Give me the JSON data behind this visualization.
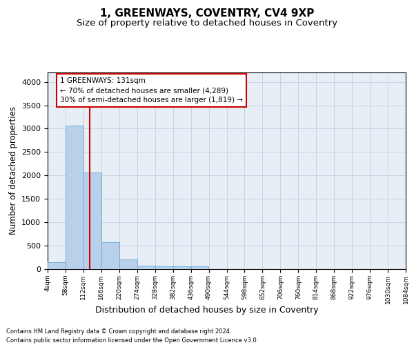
{
  "title": "1, GREENWAYS, COVENTRY, CV4 9XP",
  "subtitle": "Size of property relative to detached houses in Coventry",
  "xlabel": "Distribution of detached houses by size in Coventry",
  "ylabel": "Number of detached properties",
  "footer_line1": "Contains HM Land Registry data © Crown copyright and database right 2024.",
  "footer_line2": "Contains public sector information licensed under the Open Government Licence v3.0.",
  "bar_lefts": [
    4,
    58,
    112,
    166,
    220,
    274,
    328,
    382,
    436,
    490,
    544,
    598,
    652,
    706,
    760,
    814,
    868,
    922,
    976,
    1030
  ],
  "bar_heights": [
    150,
    3060,
    2070,
    570,
    210,
    70,
    55,
    55,
    55,
    0,
    0,
    0,
    0,
    0,
    0,
    0,
    0,
    0,
    0,
    0
  ],
  "bin_width": 54,
  "bar_color": "#b8d0ea",
  "bar_edgecolor": "#6aaad4",
  "grid_color": "#c8d4e4",
  "background_color": "#e8eef6",
  "annotation_line1": "1 GREENWAYS: 131sqm",
  "annotation_line2": "← 70% of detached houses are smaller (4,289)",
  "annotation_line3": "30% of semi-detached houses are larger (1,819) →",
  "annotation_box_edgecolor": "#cc0000",
  "vline_color": "#cc0000",
  "property_line_x": 131,
  "xlim_left": 4,
  "xlim_right": 1084,
  "ylim": [
    0,
    4200
  ],
  "yticks": [
    0,
    500,
    1000,
    1500,
    2000,
    2500,
    3000,
    3500,
    4000
  ],
  "xtick_vals": [
    4,
    58,
    112,
    166,
    220,
    274,
    328,
    382,
    436,
    490,
    544,
    598,
    652,
    706,
    760,
    814,
    868,
    922,
    976,
    1030,
    1084
  ],
  "title_fontsize": 11,
  "subtitle_fontsize": 9.5,
  "ylabel_fontsize": 8.5,
  "xlabel_fontsize": 9,
  "ytick_fontsize": 8,
  "xtick_fontsize": 6.5,
  "annotation_fontsize": 7.5,
  "footer_fontsize": 6
}
